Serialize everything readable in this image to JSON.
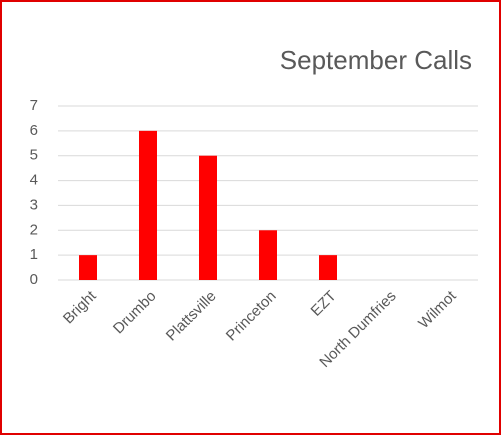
{
  "chart_data": {
    "type": "bar",
    "title": "September Calls",
    "categories": [
      "Bright",
      "Drumbo",
      "Plattsville",
      "Princeton",
      "EZT",
      "North Dumfries",
      "Wilmot"
    ],
    "values": [
      1,
      6,
      5,
      2,
      1,
      0,
      0
    ],
    "color": "#ff0000",
    "ylim": [
      0,
      7
    ],
    "yticks": [
      0,
      1,
      2,
      3,
      4,
      5,
      6,
      7
    ],
    "grid": true
  }
}
